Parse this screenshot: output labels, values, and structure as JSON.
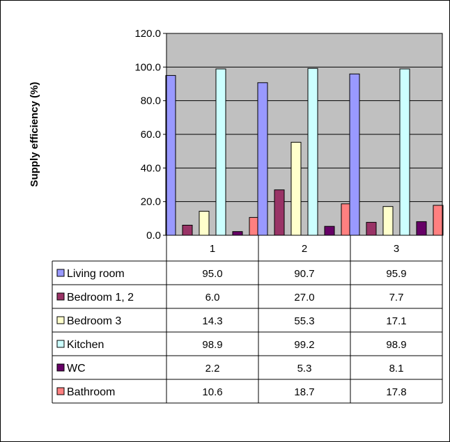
{
  "chart_data": {
    "type": "bar",
    "ylabel": "Supply efficiency (%)",
    "xlabel": "",
    "title": "",
    "ylim": [
      0,
      120
    ],
    "ytick_step": 20,
    "ytick_decimals": 1,
    "grid": true,
    "legend": "data-table",
    "categories": [
      "1",
      "2",
      "3"
    ],
    "series": [
      {
        "name": "Living room",
        "color": "#9999ff",
        "values": [
          95.0,
          90.7,
          95.9
        ],
        "labels": [
          "95.0",
          "90.7",
          "95.9"
        ]
      },
      {
        "name": "Bedroom 1, 2",
        "color": "#993366",
        "values": [
          6.0,
          27.0,
          7.7
        ],
        "labels": [
          "6.0",
          "27.0",
          "7.7"
        ]
      },
      {
        "name": "Bedroom 3",
        "color": "#ffffcc",
        "values": [
          14.3,
          55.3,
          17.1
        ],
        "labels": [
          "14.3",
          "55.3",
          "17.1"
        ]
      },
      {
        "name": "Kitchen",
        "color": "#ccffff",
        "values": [
          98.9,
          99.2,
          98.9
        ],
        "labels": [
          "98.9",
          "99.2",
          "98.9"
        ]
      },
      {
        "name": "WC",
        "color": "#660066",
        "values": [
          2.2,
          5.3,
          8.1
        ],
        "labels": [
          "2.2",
          "5.3",
          "8.1"
        ]
      },
      {
        "name": "Bathroom",
        "color": "#ff8080",
        "values": [
          10.6,
          18.7,
          17.8
        ],
        "labels": [
          "10.6",
          "18.7",
          "17.8"
        ]
      }
    ],
    "colors": {
      "plot_bg": "#c0c0c0",
      "grid": "#000000",
      "border": "#000000"
    }
  }
}
